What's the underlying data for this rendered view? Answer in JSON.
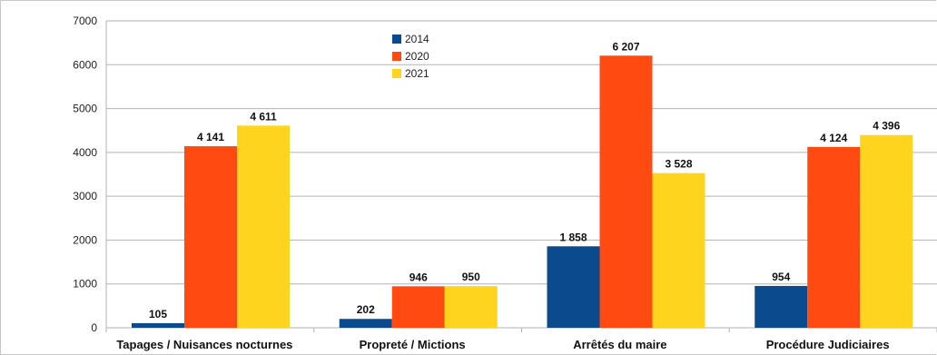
{
  "chart_data": {
    "type": "bar",
    "categories": [
      "Tapages / Nuisances nocturnes",
      "Propreté / Mictions",
      "Arrêtés du maire",
      "Procédure Judiciaires"
    ],
    "series": [
      {
        "name": "2014",
        "values": [
          105,
          202,
          1858,
          954
        ],
        "labels": [
          "105",
          "202",
          "1 858",
          "954"
        ],
        "color": "#0b4a8c"
      },
      {
        "name": "2020",
        "values": [
          4141,
          946,
          6207,
          4124
        ],
        "labels": [
          "4 141",
          "946",
          "6 207",
          "4 124"
        ],
        "color": "#ff4a12"
      },
      {
        "name": "2021",
        "values": [
          4611,
          950,
          3528,
          4396
        ],
        "labels": [
          "4 611",
          "950",
          "3 528",
          "4 396"
        ],
        "color": "#ffd41f"
      }
    ],
    "ylim": [
      0,
      7000
    ],
    "yticks": [
      0,
      1000,
      2000,
      3000,
      4000,
      5000,
      6000,
      7000
    ],
    "grid": true,
    "legend": "top-center",
    "title": "",
    "xlabel": "",
    "ylabel": ""
  }
}
